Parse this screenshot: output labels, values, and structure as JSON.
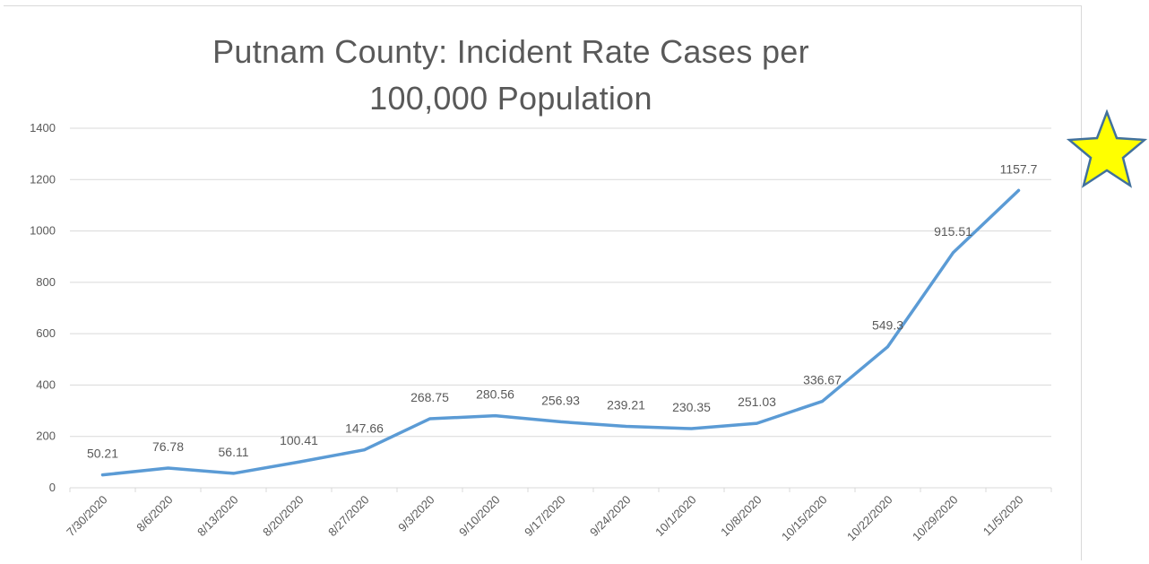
{
  "chart_data": {
    "type": "line",
    "title_line1": "Putnam County: Incident Rate Cases per",
    "title_line2": "100,000 Population",
    "categories": [
      "7/30/2020",
      "8/6/2020",
      "8/13/2020",
      "8/20/2020",
      "8/27/2020",
      "9/3/2020",
      "9/10/2020",
      "9/17/2020",
      "9/24/2020",
      "10/1/2020",
      "10/8/2020",
      "10/15/2020",
      "10/22/2020",
      "10/29/2020",
      "11/5/2020"
    ],
    "values": [
      50.21,
      76.78,
      56.11,
      100.41,
      147.66,
      268.75,
      280.56,
      256.93,
      239.21,
      230.35,
      251.03,
      336.67,
      549.3,
      915.51,
      1157.7
    ],
    "data_labels": [
      "50.21",
      "76.78",
      "56.11",
      "100.41",
      "147.66",
      "268.75",
      "280.56",
      "256.93",
      "239.21",
      "230.35",
      "251.03",
      "336.67",
      "549.3",
      "915.51",
      "1157.7"
    ],
    "yticks": [
      "0",
      "200",
      "400",
      "600",
      "800",
      "1000",
      "1200",
      "1400"
    ],
    "ylim": [
      0,
      1400
    ],
    "grid": true,
    "line_color": "#5b9bd5",
    "grid_color": "#d9d9d9",
    "text_color": "#595959"
  },
  "decoration": {
    "star_icon": "yellow-star",
    "star_fill": "#ffff00",
    "star_stroke": "#41719c"
  }
}
